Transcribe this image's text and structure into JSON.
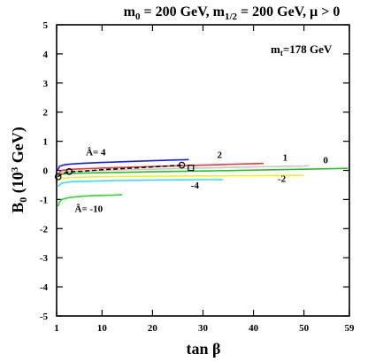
{
  "chart_data": {
    "type": "line",
    "title_parts": {
      "m0": "m",
      "m0_sub": "0",
      "m0_val": " = 200 GeV, m",
      "m12_sub": "1/2",
      "m12_val": " = 200 GeV, μ > 0"
    },
    "xlabel": "tan β",
    "ylabel_parts": {
      "b": "B",
      "b_sub": "0",
      "rest_open": " (10",
      "sup": "3",
      "rest_close": " GeV)"
    },
    "annotation_mt": {
      "m": "m",
      "sub": "t",
      "val": "=178 GeV"
    },
    "xlim": [
      1,
      59
    ],
    "ylim": [
      -5,
      5
    ],
    "x_ticks": [
      1,
      10,
      20,
      30,
      40,
      50,
      59
    ],
    "x_tick_labels": [
      "1",
      "10",
      "20",
      "30",
      "40",
      "50",
      "59"
    ],
    "y_ticks": [
      -5,
      -4,
      -3,
      -2,
      -1,
      0,
      1,
      2,
      3,
      4,
      5
    ],
    "y_tick_labels": [
      "-5",
      "-4",
      "-3",
      "-2",
      "-1",
      "0",
      "1",
      "2",
      "3",
      "4",
      "5"
    ],
    "series": [
      {
        "name": "Â= 4",
        "color": "#1a1aff",
        "x": [
          1.2,
          1.6,
          2.5,
          4,
          6,
          10,
          15,
          20,
          25,
          27.2
        ],
        "y": [
          0.0,
          0.14,
          0.19,
          0.22,
          0.24,
          0.27,
          0.3,
          0.33,
          0.36,
          0.37
        ]
      },
      {
        "name": "2",
        "color": "#ff3030",
        "x": [
          1.3,
          2,
          4,
          10,
          20,
          30,
          40,
          42
        ],
        "y": [
          -0.12,
          0.0,
          0.04,
          0.08,
          0.13,
          0.18,
          0.23,
          0.24
        ]
      },
      {
        "name": "1",
        "color": "#c8c8c8",
        "x": [
          1.3,
          2,
          4,
          10,
          20,
          30,
          40,
          50,
          51
        ],
        "y": [
          -0.17,
          -0.07,
          -0.03,
          0.0,
          0.04,
          0.08,
          0.12,
          0.15,
          0.16
        ]
      },
      {
        "name": "0",
        "color": "#22c422",
        "x": [
          1.3,
          2,
          4,
          10,
          20,
          30,
          40,
          50,
          58.7
        ],
        "y": [
          -0.21,
          -0.13,
          -0.1,
          -0.08,
          -0.05,
          -0.02,
          0.01,
          0.04,
          0.07
        ]
      },
      {
        "name": "-2",
        "color": "#f0f020",
        "x": [
          1.3,
          2,
          4,
          10,
          20,
          30,
          40,
          50
        ],
        "y": [
          -0.34,
          -0.27,
          -0.24,
          -0.22,
          -0.2,
          -0.19,
          -0.18,
          -0.17
        ]
      },
      {
        "name": "-4",
        "color": "#30e0f0",
        "x": [
          1.3,
          2,
          4,
          10,
          20,
          30,
          34
        ],
        "y": [
          -0.55,
          -0.44,
          -0.39,
          -0.36,
          -0.33,
          -0.32,
          -0.32
        ]
      },
      {
        "name": "Â= -10",
        "color": "#20e020",
        "x": [
          1.3,
          1.6,
          2,
          3,
          4,
          6,
          8,
          10,
          12,
          14
        ],
        "y": [
          -1.23,
          -1.08,
          -1.0,
          -0.95,
          -0.92,
          -0.89,
          -0.87,
          -0.86,
          -0.85,
          -0.84
        ]
      },
      {
        "name": "",
        "color": "#000000",
        "dashed": true,
        "x": [
          1.3,
          2,
          3.5,
          6,
          10,
          15,
          20,
          25.8
        ],
        "y": [
          -0.22,
          -0.12,
          -0.05,
          -0.03,
          0.02,
          0.07,
          0.12,
          0.18
        ]
      }
    ],
    "markers": [
      {
        "shape": "circle",
        "x": 1.3,
        "y": -0.22
      },
      {
        "shape": "circle",
        "x": 3.5,
        "y": -0.04
      },
      {
        "shape": "circle",
        "x": 25.8,
        "y": 0.18
      },
      {
        "shape": "square",
        "x": 27.6,
        "y": 0.09
      }
    ],
    "labels": [
      {
        "text": "Â= 4",
        "x": 6.8,
        "y": 0.52
      },
      {
        "text": "2",
        "x": 32.8,
        "y": 0.42
      },
      {
        "text": "1",
        "x": 45.8,
        "y": 0.33
      },
      {
        "text": "0",
        "x": 53.8,
        "y": 0.24
      },
      {
        "text": "-2",
        "x": 44.8,
        "y": -0.4
      },
      {
        "text": "-4",
        "x": 27.6,
        "y": -0.62
      },
      {
        "text": "Â= -10",
        "x": 4.6,
        "y": -1.43
      }
    ]
  }
}
